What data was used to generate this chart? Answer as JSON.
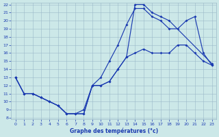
{
  "title": "Graphe des températures (°c)",
  "bg_color": "#cce8e8",
  "line_color": "#1a3ab0",
  "grid_color": "#9ab8c8",
  "ylim": [
    8,
    22
  ],
  "xlim": [
    -0.5,
    23.5
  ],
  "yticks": [
    8,
    9,
    10,
    11,
    12,
    13,
    14,
    15,
    16,
    17,
    18,
    19,
    20,
    21,
    22
  ],
  "xticks": [
    0,
    1,
    2,
    3,
    4,
    5,
    6,
    7,
    8,
    9,
    10,
    11,
    12,
    13,
    14,
    15,
    16,
    17,
    18,
    19,
    20,
    21,
    22,
    23
  ],
  "lines": [
    {
      "x": [
        0,
        1,
        2,
        3,
        4,
        5,
        6,
        7,
        8,
        9,
        10,
        11,
        12,
        13,
        14,
        15,
        16,
        17,
        18,
        19,
        20,
        21,
        22,
        23
      ],
      "y": [
        13,
        11,
        11,
        10.5,
        10,
        9.5,
        8.5,
        8.5,
        8.5,
        12,
        12,
        12.5,
        14,
        15.5,
        16,
        16.5,
        16,
        16,
        16,
        17,
        17,
        16,
        15,
        14.5
      ]
    },
    {
      "x": [
        0,
        1,
        2,
        3,
        4,
        5,
        6,
        7,
        8,
        9,
        10,
        11,
        12,
        13,
        14,
        15,
        16,
        17,
        18,
        19,
        20,
        21,
        22,
        23
      ],
      "y": [
        13,
        11,
        11,
        10.5,
        10,
        9.5,
        8.5,
        8.5,
        9,
        12,
        13,
        15,
        17,
        19.5,
        21.5,
        21.5,
        20.5,
        20,
        19,
        19,
        20,
        20.5,
        16,
        14.5
      ]
    },
    {
      "x": [
        0,
        1,
        2,
        3,
        4,
        5,
        6,
        7,
        8,
        9,
        10,
        11,
        12,
        13,
        14,
        15,
        16,
        17,
        18,
        19,
        20,
        21,
        22,
        23
      ],
      "y": [
        13,
        11,
        11,
        10.5,
        10,
        9.5,
        8.5,
        8.5,
        8.5,
        12,
        12,
        12.5,
        14,
        15.5,
        22,
        22,
        21,
        20.5,
        20,
        null,
        null,
        null,
        null,
        14.7
      ]
    }
  ]
}
